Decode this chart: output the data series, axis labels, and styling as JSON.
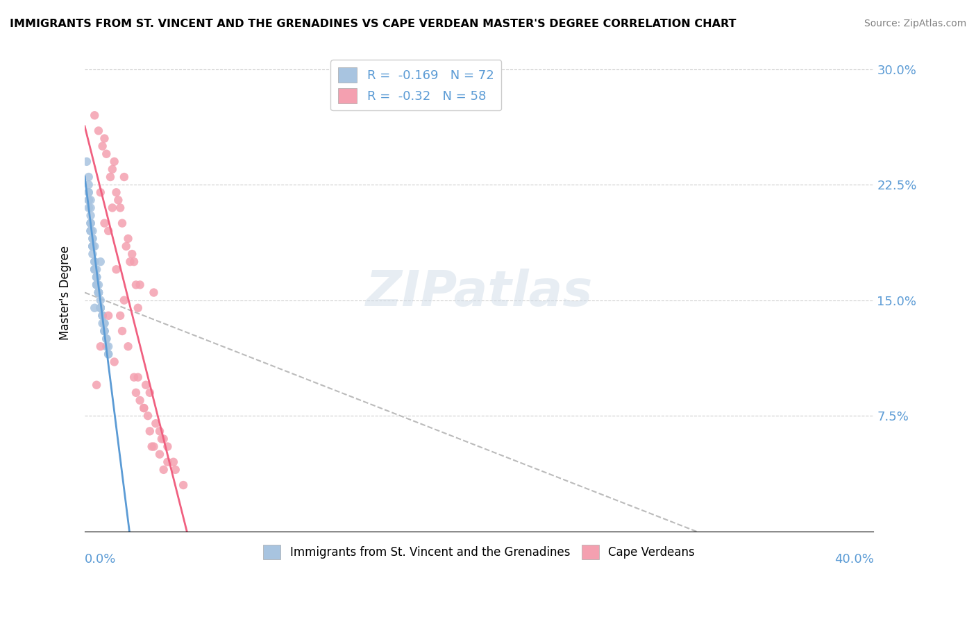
{
  "title": "IMMIGRANTS FROM ST. VINCENT AND THE GRENADINES VS CAPE VERDEAN MASTER'S DEGREE CORRELATION CHART",
  "source": "Source: ZipAtlas.com",
  "ylabel": "Master's Degree",
  "ytick_vals": [
    0.075,
    0.15,
    0.225,
    0.3
  ],
  "xlim": [
    0.0,
    0.4
  ],
  "ylim": [
    0.0,
    0.31
  ],
  "r_blue": -0.169,
  "n_blue": 72,
  "r_pink": -0.32,
  "n_pink": 58,
  "blue_color": "#a8c4e0",
  "pink_color": "#f4a0b0",
  "blue_line_color": "#5b9bd5",
  "pink_line_color": "#f06080",
  "legend_label_blue": "Immigrants from St. Vincent and the Grenadines",
  "legend_label_pink": "Cape Verdeans",
  "blue_scatter_x": [
    0.005,
    0.003,
    0.008,
    0.002,
    0.001,
    0.004,
    0.006,
    0.01,
    0.012,
    0.007,
    0.003,
    0.005,
    0.009,
    0.002,
    0.006,
    0.008,
    0.011,
    0.004,
    0.003,
    0.007,
    0.005,
    0.002,
    0.008,
    0.01,
    0.006,
    0.004,
    0.009,
    0.003,
    0.007,
    0.005,
    0.012,
    0.006,
    0.003,
    0.008,
    0.004,
    0.01,
    0.002,
    0.007,
    0.005,
    0.009,
    0.011,
    0.003,
    0.006,
    0.004,
    0.008,
    0.002,
    0.005,
    0.01,
    0.007,
    0.003,
    0.009,
    0.006,
    0.004,
    0.012,
    0.005,
    0.008,
    0.003,
    0.007,
    0.002,
    0.01,
    0.006,
    0.004,
    0.011,
    0.005,
    0.008,
    0.003,
    0.007,
    0.009,
    0.002,
    0.006,
    0.01,
    0.004
  ],
  "blue_scatter_y": [
    0.145,
    0.2,
    0.175,
    0.22,
    0.24,
    0.19,
    0.165,
    0.13,
    0.12,
    0.155,
    0.21,
    0.185,
    0.14,
    0.23,
    0.17,
    0.15,
    0.125,
    0.195,
    0.215,
    0.16,
    0.175,
    0.225,
    0.145,
    0.135,
    0.165,
    0.185,
    0.14,
    0.205,
    0.155,
    0.17,
    0.115,
    0.16,
    0.2,
    0.145,
    0.19,
    0.13,
    0.22,
    0.155,
    0.175,
    0.14,
    0.125,
    0.195,
    0.165,
    0.185,
    0.145,
    0.215,
    0.17,
    0.13,
    0.155,
    0.2,
    0.135,
    0.16,
    0.185,
    0.115,
    0.17,
    0.145,
    0.195,
    0.155,
    0.21,
    0.135,
    0.16,
    0.18,
    0.12,
    0.17,
    0.145,
    0.195,
    0.155,
    0.14,
    0.215,
    0.165,
    0.13,
    0.185
  ],
  "pink_scatter_x": [
    0.005,
    0.012,
    0.02,
    0.035,
    0.008,
    0.025,
    0.015,
    0.04,
    0.03,
    0.018,
    0.022,
    0.01,
    0.028,
    0.016,
    0.038,
    0.006,
    0.032,
    0.014,
    0.024,
    0.042,
    0.019,
    0.027,
    0.011,
    0.033,
    0.007,
    0.021,
    0.036,
    0.013,
    0.026,
    0.045,
    0.017,
    0.031,
    0.009,
    0.023,
    0.039,
    0.015,
    0.028,
    0.02,
    0.034,
    0.012,
    0.025,
    0.04,
    0.018,
    0.03,
    0.05,
    0.022,
    0.016,
    0.035,
    0.01,
    0.027,
    0.042,
    0.008,
    0.033,
    0.019,
    0.038,
    0.014,
    0.026,
    0.046
  ],
  "pink_scatter_y": [
    0.27,
    0.195,
    0.23,
    0.155,
    0.12,
    0.175,
    0.24,
    0.04,
    0.08,
    0.21,
    0.19,
    0.255,
    0.16,
    0.22,
    0.065,
    0.095,
    0.075,
    0.235,
    0.18,
    0.055,
    0.2,
    0.145,
    0.245,
    0.09,
    0.26,
    0.185,
    0.07,
    0.23,
    0.16,
    0.045,
    0.215,
    0.095,
    0.25,
    0.175,
    0.06,
    0.11,
    0.085,
    0.15,
    0.055,
    0.14,
    0.1,
    0.06,
    0.14,
    0.08,
    0.03,
    0.12,
    0.17,
    0.055,
    0.2,
    0.1,
    0.045,
    0.22,
    0.065,
    0.13,
    0.05,
    0.21,
    0.09,
    0.04
  ]
}
